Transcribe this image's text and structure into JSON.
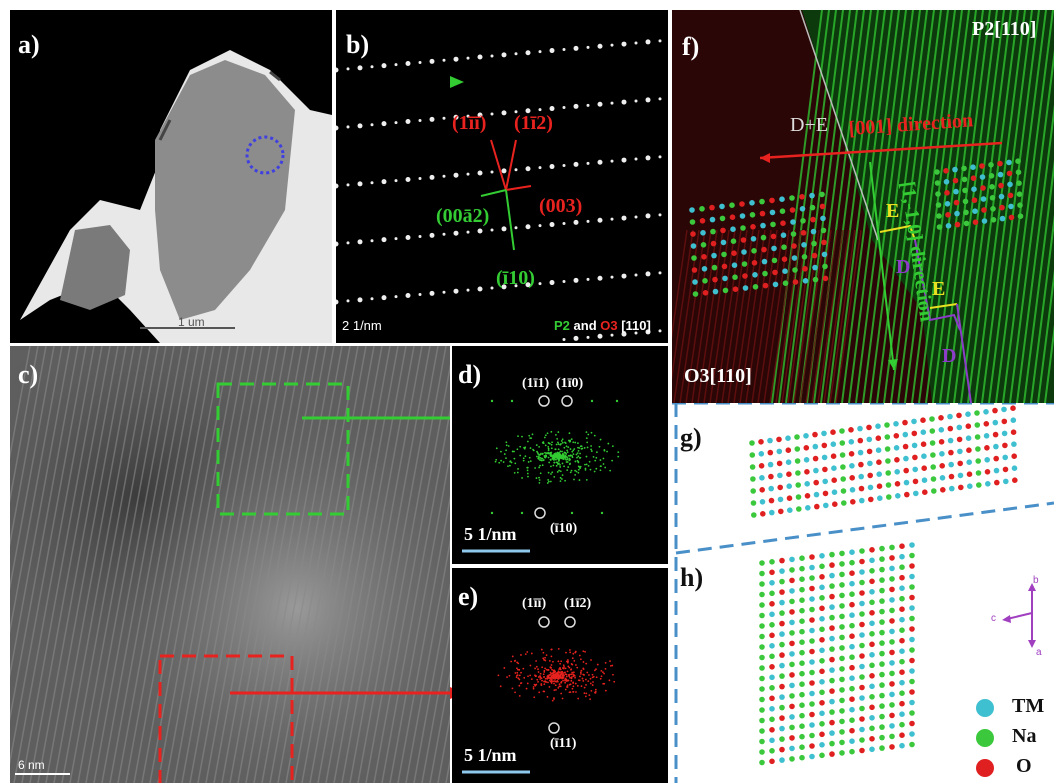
{
  "panels": {
    "a": {
      "label": "a)",
      "scalebar": "1 um"
    },
    "b": {
      "label": "b)",
      "scalebar": "2 1/nm",
      "p2": "P2",
      "and": " and ",
      "o3": "O3",
      "zone": " [110]",
      "idx_1m1m1": "(1īī)",
      "idx_1m12": "(1ī2)",
      "idx_003": "(003)",
      "idx_00m2": "(00ā2)",
      "idx_m110": "(ī10)"
    },
    "c": {
      "label": "c)",
      "scalebar": "6 nm"
    },
    "d": {
      "label": "d)",
      "scalebar": "5 1/nm",
      "idx_1m11": "(1ī1)",
      "idx_1m10": "(1ī0)",
      "idx_m110": "(ī10)"
    },
    "e": {
      "label": "e)",
      "scalebar": "5 1/nm",
      "idx_1m1m1": "(1īī)",
      "idx_1m12": "(1ī2)",
      "idx_m111": "(ī11)"
    },
    "f": {
      "label": "f)",
      "p2": "P2[110]",
      "o3": "O3[110]",
      "de": "D+E",
      "dir001": "[001] direction",
      "dir110": "[1,-1,0] direction",
      "e": "E",
      "d": "D"
    },
    "g": {
      "label": "g)"
    },
    "h": {
      "label": "h)",
      "axis_b": "b",
      "axis_c": "c",
      "axis_a": "a"
    }
  },
  "legend": [
    {
      "name": "TM",
      "color": "#3fc0d0"
    },
    {
      "name": "Na",
      "color": "#3cc83c"
    },
    {
      "name": "O",
      "color": "#e02020"
    }
  ],
  "colors": {
    "green": "#33cc33",
    "red": "#e8231f",
    "purple": "#8c3cc8",
    "yellow": "#e8e020",
    "blue_dash": "#4a90c8"
  }
}
